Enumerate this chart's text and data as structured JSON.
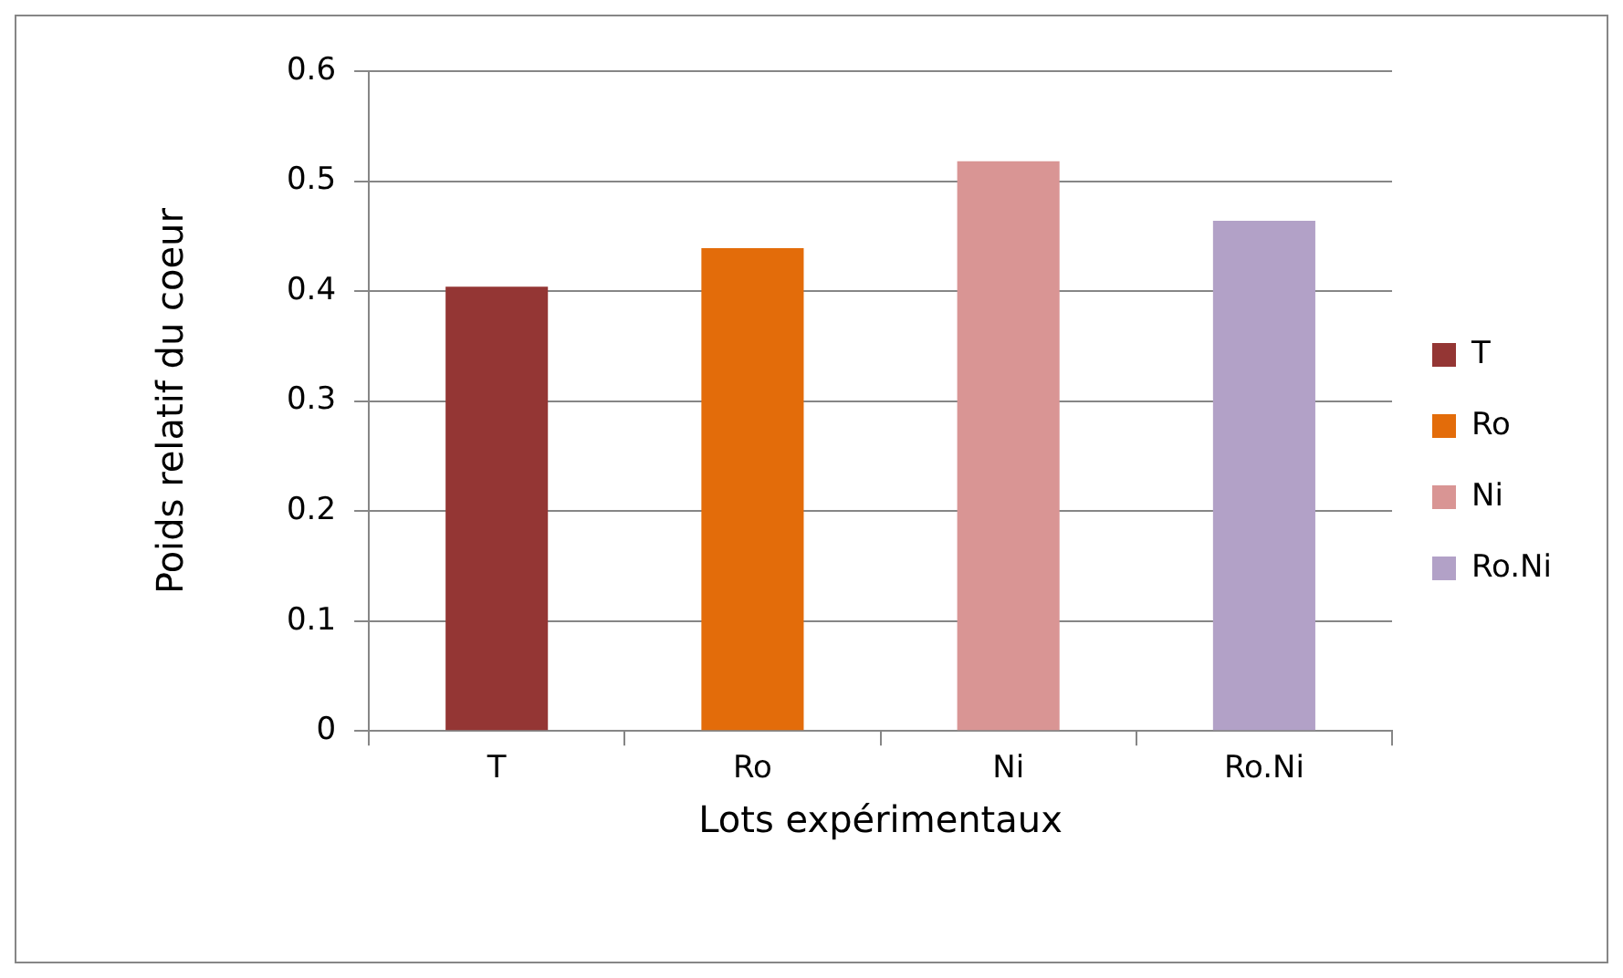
{
  "chart_data": {
    "type": "bar",
    "xlabel": "Lots expérimentaux",
    "ylabel": "Poids relatif du coeur",
    "categories": [
      "T",
      "Ro",
      "Ni",
      "Ro.Ni"
    ],
    "series": [
      {
        "name": "T",
        "color": "#943634",
        "values": [
          0.404,
          null,
          null,
          null
        ]
      },
      {
        "name": "Ro",
        "color": "#e36c0a",
        "values": [
          null,
          0.439,
          null,
          null
        ]
      },
      {
        "name": "Ni",
        "color": "#d99594",
        "values": [
          null,
          null,
          0.518,
          null
        ]
      },
      {
        "name": "Ro.Ni",
        "color": "#b2a1c7",
        "values": [
          null,
          null,
          null,
          0.464
        ]
      }
    ],
    "ylim": [
      0,
      0.6
    ],
    "yticks": [
      0,
      0.1,
      0.2,
      0.3,
      0.4,
      0.5,
      0.6
    ],
    "grid": "y",
    "legend": "right"
  }
}
